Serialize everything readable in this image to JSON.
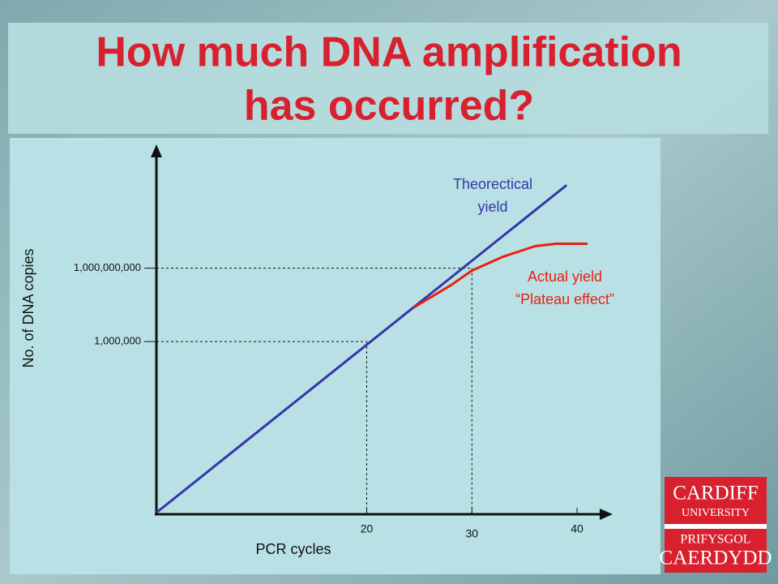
{
  "title": [
    "How much DNA amplification",
    "has occurred?"
  ],
  "logo": [
    "CARDIFF",
    "UNIVERSITY",
    "PRIFYSGOL",
    "CAERDYDD"
  ],
  "chart_data": {
    "type": "line",
    "ylog": true,
    "xlabel": "PCR cycles",
    "ylabel": "No. of DNA copies",
    "xlim": [
      0,
      43
    ],
    "ylim": [
      0.1,
      100000000000000
    ],
    "xticks": [
      20,
      30,
      40
    ],
    "yticks": [
      {
        "value": 1000000,
        "label": "1,000,000"
      },
      {
        "value": 1000000000,
        "label": "1,000,000,000"
      }
    ],
    "series": [
      {
        "color": "#3535a8",
        "x": [
          0,
          39
        ],
        "values": [
          0.1,
          2500000000000
        ]
      },
      {
        "color": "#e82010",
        "x": [
          24.5,
          28,
          30,
          33,
          36,
          38,
          41
        ],
        "values": [
          25000000,
          200000000,
          800000000,
          3000000000,
          8000000000,
          10000000000,
          10000000000
        ]
      }
    ],
    "annotations": [
      {
        "lines": [
          "Theorectical",
          "yield"
        ]
      },
      {
        "lines": [
          "Actual yield",
          "“Plateau effect”"
        ]
      }
    ]
  }
}
